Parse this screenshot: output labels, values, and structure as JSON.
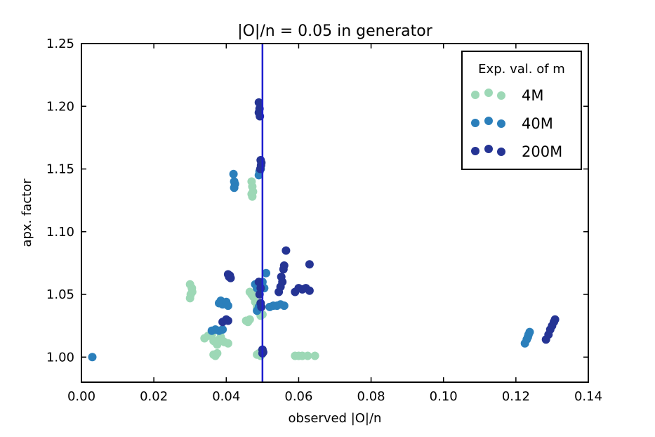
{
  "chart_data": {
    "type": "scatter",
    "title": "|O|/n = 0.05 in generator",
    "xlabel": "observed |O|/n",
    "ylabel": "apx. factor",
    "xlim": [
      0.0,
      0.14
    ],
    "ylim": [
      0.98,
      1.25
    ],
    "xticks": [
      "0.00",
      "0.02",
      "0.04",
      "0.06",
      "0.08",
      "0.10",
      "0.12",
      "0.14"
    ],
    "yticks": [
      "1.00",
      "1.05",
      "1.10",
      "1.15",
      "1.20",
      "1.25"
    ],
    "grid": false,
    "reference_line": {
      "x": 0.05,
      "color": "#1f1fd0"
    },
    "legend": {
      "title": "Exp. val. of m",
      "placement": "top-right"
    },
    "series": [
      {
        "name": "4M",
        "color": "#9dd8b6",
        "points": [
          [
            0.03,
            1.058
          ],
          [
            0.0305,
            1.055
          ],
          [
            0.0302,
            1.05
          ],
          [
            0.03,
            1.047
          ],
          [
            0.0306,
            1.052
          ],
          [
            0.034,
            1.015
          ],
          [
            0.035,
            1.017
          ],
          [
            0.036,
            1.018
          ],
          [
            0.0365,
            1.013
          ],
          [
            0.037,
            1.012
          ],
          [
            0.0375,
            1.01
          ],
          [
            0.038,
            1.014
          ],
          [
            0.0385,
            1.016
          ],
          [
            0.039,
            1.013
          ],
          [
            0.0395,
            1.012
          ],
          [
            0.0405,
            1.011
          ],
          [
            0.0365,
            1.002
          ],
          [
            0.037,
            1.001
          ],
          [
            0.0375,
            1.003
          ],
          [
            0.0455,
            1.029
          ],
          [
            0.046,
            1.028
          ],
          [
            0.0465,
            1.03
          ],
          [
            0.0465,
            1.052
          ],
          [
            0.047,
            1.05
          ],
          [
            0.0475,
            1.048
          ],
          [
            0.047,
            1.14
          ],
          [
            0.0472,
            1.136
          ],
          [
            0.0474,
            1.132
          ],
          [
            0.0472,
            1.128
          ],
          [
            0.047,
            1.13
          ],
          [
            0.048,
            1.044
          ],
          [
            0.0485,
            1.04
          ],
          [
            0.049,
            1.036
          ],
          [
            0.0495,
            1.033
          ],
          [
            0.05,
            1.034
          ],
          [
            0.0485,
            1.002
          ],
          [
            0.049,
            1.003
          ],
          [
            0.0495,
            1.001
          ],
          [
            0.059,
            1.001
          ],
          [
            0.06,
            1.001
          ],
          [
            0.061,
            1.001
          ],
          [
            0.0625,
            1.001
          ],
          [
            0.0645,
            1.001
          ]
        ]
      },
      {
        "name": "40M",
        "color": "#2b7fbb",
        "points": [
          [
            0.003,
            1.0
          ],
          [
            0.036,
            1.021
          ],
          [
            0.037,
            1.022
          ],
          [
            0.038,
            1.021
          ],
          [
            0.039,
            1.022
          ],
          [
            0.038,
            1.043
          ],
          [
            0.0385,
            1.045
          ],
          [
            0.039,
            1.042
          ],
          [
            0.04,
            1.044
          ],
          [
            0.0405,
            1.041
          ],
          [
            0.042,
            1.146
          ],
          [
            0.0422,
            1.14
          ],
          [
            0.0424,
            1.138
          ],
          [
            0.0422,
            1.135
          ],
          [
            0.048,
            1.058
          ],
          [
            0.0485,
            1.055
          ],
          [
            0.049,
            1.04
          ],
          [
            0.0485,
            1.037
          ],
          [
            0.0495,
            1.15
          ],
          [
            0.049,
            1.145
          ],
          [
            0.0492,
            1.148
          ],
          [
            0.05,
            1.06
          ],
          [
            0.0505,
            1.055
          ],
          [
            0.051,
            1.067
          ],
          [
            0.052,
            1.04
          ],
          [
            0.053,
            1.041
          ],
          [
            0.054,
            1.041
          ],
          [
            0.055,
            1.042
          ],
          [
            0.056,
            1.041
          ],
          [
            0.1225,
            1.011
          ],
          [
            0.123,
            1.014
          ],
          [
            0.1233,
            1.016
          ],
          [
            0.1235,
            1.018
          ],
          [
            0.1238,
            1.02
          ]
        ]
      },
      {
        "name": "200M",
        "color": "#253494",
        "points": [
          [
            0.039,
            1.028
          ],
          [
            0.04,
            1.03
          ],
          [
            0.0405,
            1.029
          ],
          [
            0.0405,
            1.066
          ],
          [
            0.0408,
            1.064
          ],
          [
            0.041,
            1.065
          ],
          [
            0.0412,
            1.063
          ],
          [
            0.049,
            1.203
          ],
          [
            0.0492,
            1.198
          ],
          [
            0.049,
            1.195
          ],
          [
            0.0493,
            1.192
          ],
          [
            0.0495,
            1.157
          ],
          [
            0.0496,
            1.153
          ],
          [
            0.0494,
            1.15
          ],
          [
            0.0497,
            1.155
          ],
          [
            0.049,
            1.06
          ],
          [
            0.0495,
            1.055
          ],
          [
            0.0492,
            1.05
          ],
          [
            0.0495,
            1.043
          ],
          [
            0.0497,
            1.04
          ],
          [
            0.05,
            1.006
          ],
          [
            0.0502,
            1.004
          ],
          [
            0.05,
            1.003
          ],
          [
            0.0545,
            1.052
          ],
          [
            0.055,
            1.056
          ],
          [
            0.0555,
            1.06
          ],
          [
            0.0552,
            1.064
          ],
          [
            0.0558,
            1.07
          ],
          [
            0.056,
            1.073
          ],
          [
            0.0565,
            1.085
          ],
          [
            0.059,
            1.052
          ],
          [
            0.06,
            1.055
          ],
          [
            0.061,
            1.054
          ],
          [
            0.062,
            1.055
          ],
          [
            0.063,
            1.053
          ],
          [
            0.063,
            1.074
          ],
          [
            0.1283,
            1.014
          ],
          [
            0.129,
            1.018
          ],
          [
            0.1295,
            1.022
          ],
          [
            0.13,
            1.025
          ],
          [
            0.1305,
            1.028
          ],
          [
            0.1308,
            1.03
          ]
        ]
      }
    ]
  }
}
